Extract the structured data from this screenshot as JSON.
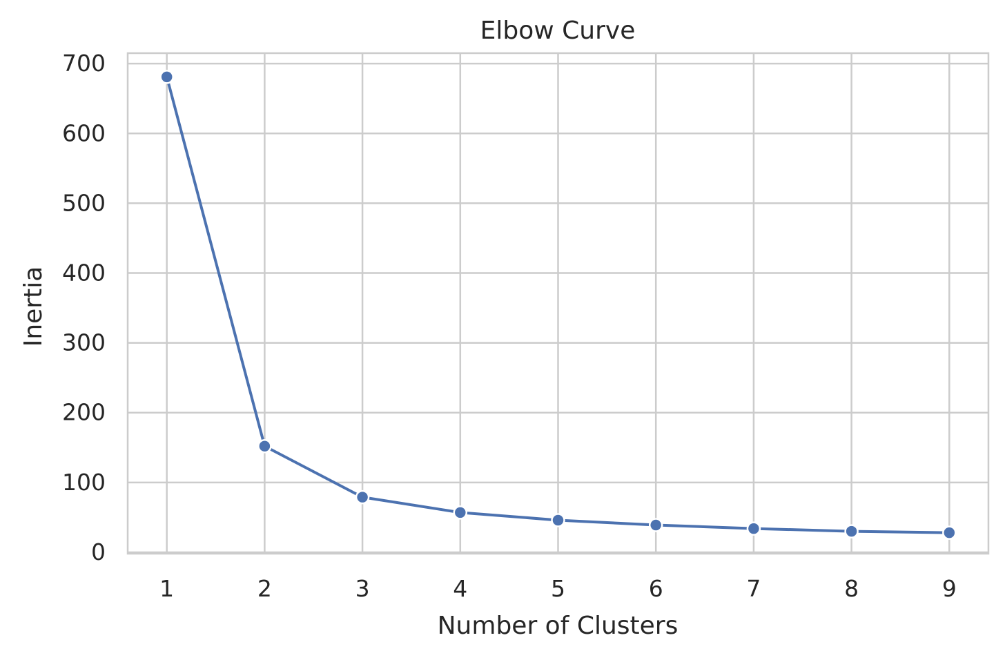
{
  "chart_data": {
    "type": "line",
    "title": "Elbow Curve",
    "xlabel": "Number of Clusters",
    "ylabel": "Inertia",
    "x": [
      1,
      2,
      3,
      4,
      5,
      6,
      7,
      8,
      9
    ],
    "series": [
      {
        "values": [
          681,
          152,
          79,
          57,
          46,
          39,
          34,
          30,
          28
        ]
      }
    ],
    "xticks": [
      "1",
      "2",
      "3",
      "4",
      "5",
      "6",
      "7",
      "8",
      "9"
    ],
    "yticks": [
      "0",
      "100",
      "200",
      "300",
      "400",
      "500",
      "600",
      "700"
    ],
    "xlim": [
      0.6,
      9.4
    ],
    "ylim": [
      -2,
      715
    ],
    "grid": true,
    "line_color": "#4c72b0",
    "marker_edge_color": "#ffffff",
    "grid_color": "#cccccc"
  }
}
